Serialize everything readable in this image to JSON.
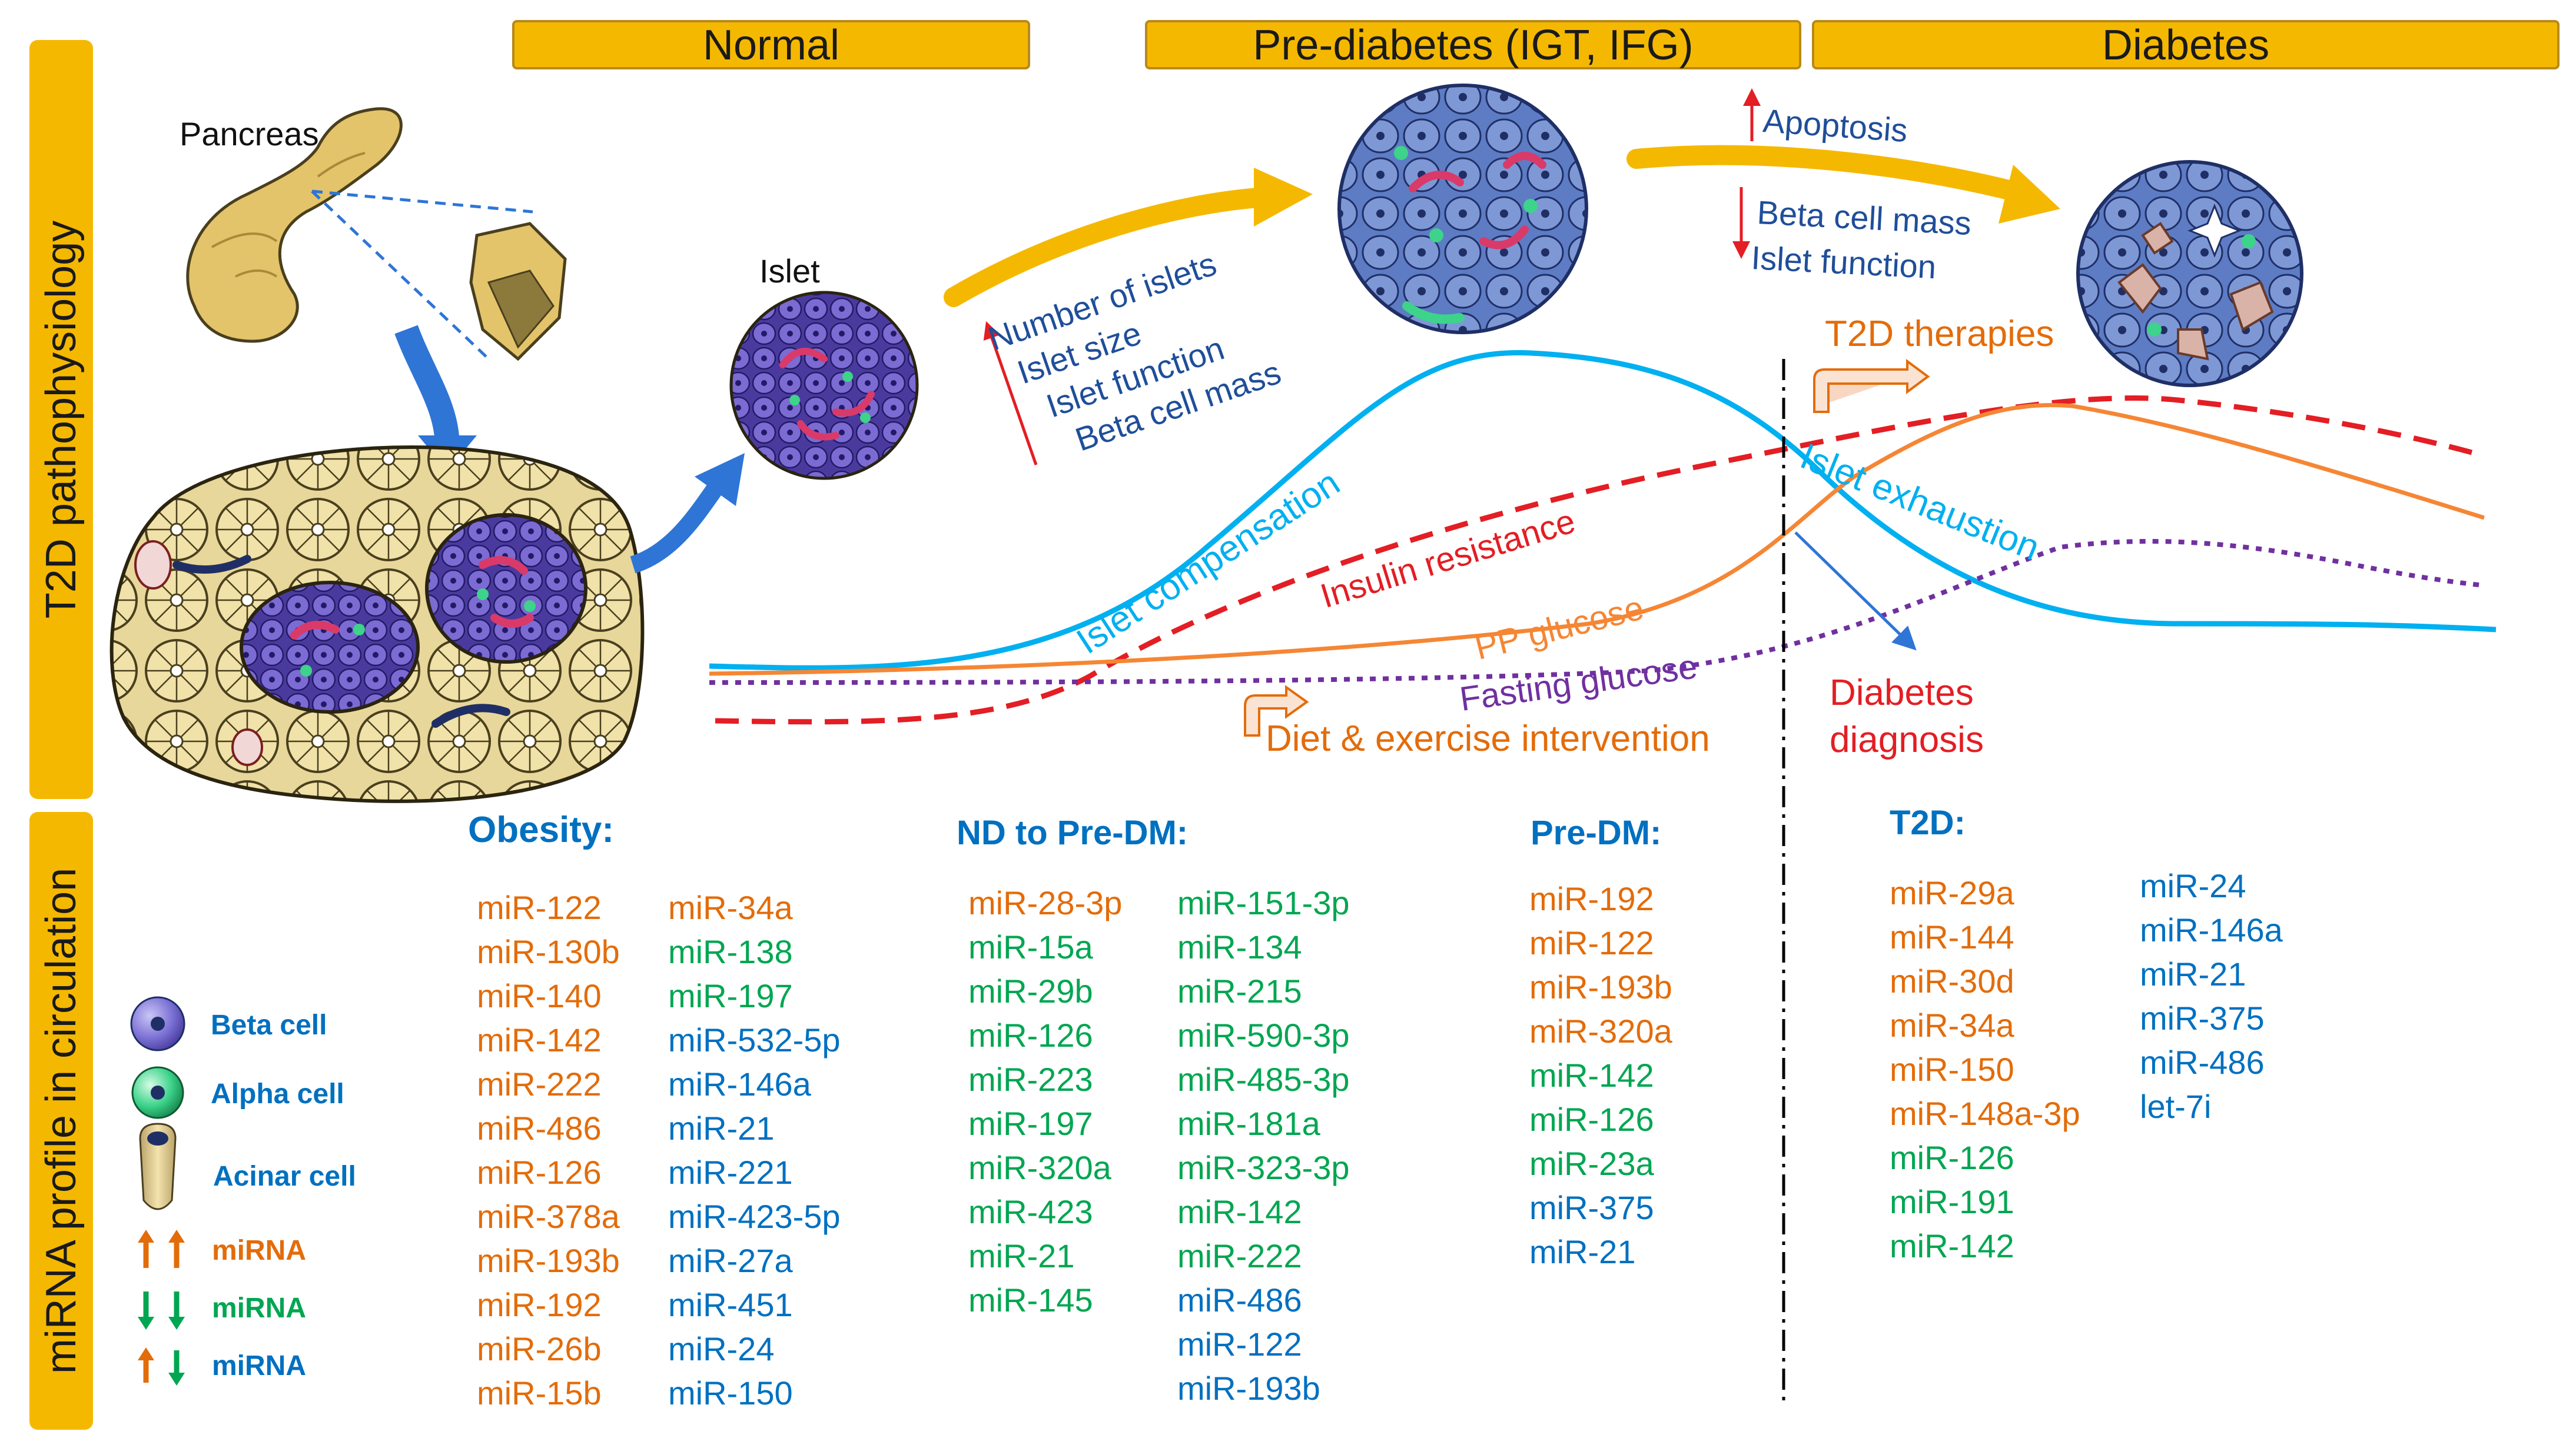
{
  "sidebar": {
    "top_label": "T2D pathophysiology",
    "bottom_label": "miRNA profile in circulation"
  },
  "stages": [
    "Normal",
    "Pre-diabetes (IGT, IFG)",
    "Diabetes"
  ],
  "labels": {
    "pancreas": "Pancreas",
    "islet": "Islet",
    "apoptosis": "Apoptosis",
    "beta_cell_mass_down": "Beta cell mass",
    "islet_function_down": "Islet function",
    "increase_list": [
      "Number of islets",
      "Islet size",
      "Islet function",
      "Beta cell mass"
    ],
    "t2d_therapies": "T2D therapies",
    "diet_exercise": "Diet & exercise intervention",
    "diabetes_diagnosis_1": "Diabetes",
    "diabetes_diagnosis_2": "diagnosis"
  },
  "curves": {
    "islet_compensation": "Islet compensation",
    "islet_exhaustion": "Islet exhaustion",
    "insulin_resistance": "Insulin resistance",
    "pp_glucose": "PP glucose",
    "fasting_glucose": "Fasting glucose"
  },
  "colors": {
    "stage_bg": "#F5B800",
    "up": "#E36C0A",
    "down": "#00A651",
    "mixed": "#0070C0",
    "compensation": "#00B0F0",
    "insulin": "#E31E24",
    "pp_glucose": "#F58634",
    "fasting": "#7030A0"
  },
  "mirna": {
    "obesity": {
      "title": "Obesity:",
      "col1": [
        {
          "n": "miR-122",
          "d": "up"
        },
        {
          "n": "miR-130b",
          "d": "up"
        },
        {
          "n": "miR-140",
          "d": "up"
        },
        {
          "n": "miR-142",
          "d": "up"
        },
        {
          "n": "miR-222",
          "d": "up"
        },
        {
          "n": "miR-486",
          "d": "up"
        },
        {
          "n": "miR-126",
          "d": "up"
        },
        {
          "n": "miR-378a",
          "d": "up"
        },
        {
          "n": "miR-193b",
          "d": "up"
        },
        {
          "n": "miR-192",
          "d": "up"
        },
        {
          "n": "miR-26b",
          "d": "up"
        },
        {
          "n": "miR-15b",
          "d": "up"
        }
      ],
      "col2": [
        {
          "n": "miR-34a",
          "d": "up"
        },
        {
          "n": "miR-138",
          "d": "down"
        },
        {
          "n": "miR-197",
          "d": "down"
        },
        {
          "n": "miR-532-5p",
          "d": "mix"
        },
        {
          "n": "miR-146a",
          "d": "mix"
        },
        {
          "n": "miR-21",
          "d": "mix"
        },
        {
          "n": "miR-221",
          "d": "mix"
        },
        {
          "n": "miR-423-5p",
          "d": "mix"
        },
        {
          "n": "miR-27a",
          "d": "mix"
        },
        {
          "n": "miR-451",
          "d": "mix"
        },
        {
          "n": "miR-24",
          "d": "mix"
        },
        {
          "n": "miR-150",
          "d": "mix"
        }
      ]
    },
    "nd_to_predm": {
      "title": "ND to Pre-DM:",
      "col1": [
        {
          "n": "miR-28-3p",
          "d": "up"
        },
        {
          "n": "miR-15a",
          "d": "down"
        },
        {
          "n": "miR-29b",
          "d": "down"
        },
        {
          "n": "miR-126",
          "d": "down"
        },
        {
          "n": "miR-223",
          "d": "down"
        },
        {
          "n": "miR-197",
          "d": "down"
        },
        {
          "n": "miR-320a",
          "d": "down"
        },
        {
          "n": "miR-423",
          "d": "down"
        },
        {
          "n": "miR-21",
          "d": "down"
        },
        {
          "n": "miR-145",
          "d": "down"
        }
      ],
      "col2": [
        {
          "n": "miR-151-3p",
          "d": "down"
        },
        {
          "n": "miR-134",
          "d": "down"
        },
        {
          "n": "miR-215",
          "d": "down"
        },
        {
          "n": "miR-590-3p",
          "d": "down"
        },
        {
          "n": "miR-485-3p",
          "d": "down"
        },
        {
          "n": "miR-181a",
          "d": "down"
        },
        {
          "n": "miR-323-3p",
          "d": "down"
        },
        {
          "n": "miR-142",
          "d": "down"
        },
        {
          "n": "miR-222",
          "d": "down"
        },
        {
          "n": "miR-486",
          "d": "mix"
        },
        {
          "n": "miR-122",
          "d": "mix"
        },
        {
          "n": "miR-193b",
          "d": "mix"
        }
      ]
    },
    "predm": {
      "title": "Pre-DM:",
      "col1": [
        {
          "n": "miR-192",
          "d": "up"
        },
        {
          "n": "miR-122",
          "d": "up"
        },
        {
          "n": "miR-193b",
          "d": "up"
        },
        {
          "n": "miR-320a",
          "d": "up"
        },
        {
          "n": "miR-142",
          "d": "down"
        },
        {
          "n": "miR-126",
          "d": "down"
        },
        {
          "n": "miR-23a",
          "d": "down"
        },
        {
          "n": "miR-375",
          "d": "mix"
        },
        {
          "n": "miR-21",
          "d": "mix"
        }
      ]
    },
    "t2d": {
      "title": "T2D:",
      "col1": [
        {
          "n": "miR-29a",
          "d": "up"
        },
        {
          "n": "miR-144",
          "d": "up"
        },
        {
          "n": "miR-30d",
          "d": "up"
        },
        {
          "n": "miR-34a",
          "d": "up"
        },
        {
          "n": "miR-150",
          "d": "up"
        },
        {
          "n": "miR-148a-3p",
          "d": "up"
        },
        {
          "n": "miR-126",
          "d": "down"
        },
        {
          "n": "miR-191",
          "d": "down"
        },
        {
          "n": "miR-142",
          "d": "down"
        }
      ],
      "col2": [
        {
          "n": "miR-24",
          "d": "mix"
        },
        {
          "n": "miR-146a",
          "d": "mix"
        },
        {
          "n": "miR-21",
          "d": "mix"
        },
        {
          "n": "miR-375",
          "d": "mix"
        },
        {
          "n": "miR-486",
          "d": "mix"
        },
        {
          "n": "let-7i",
          "d": "mix"
        }
      ]
    }
  },
  "legend": {
    "beta_cell": "Beta cell",
    "alpha_cell": "Alpha cell",
    "acinar_cell": "Acinar cell",
    "mirna_up": "miRNA",
    "mirna_down": "miRNA",
    "mirna_mixed": "miRNA"
  }
}
